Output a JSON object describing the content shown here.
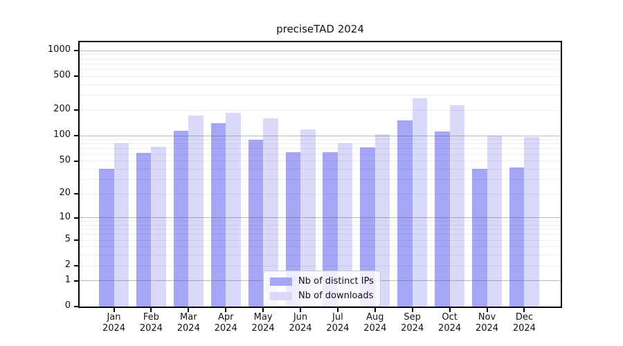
{
  "title": "preciseTAD 2024",
  "chart_data": {
    "type": "bar",
    "title": "preciseTAD 2024",
    "year_label": "2024",
    "categories": [
      "Jan",
      "Feb",
      "Mar",
      "Apr",
      "May",
      "Jun",
      "Jul",
      "Aug",
      "Sep",
      "Oct",
      "Nov",
      "Dec"
    ],
    "series": [
      {
        "name": "Nb of distinct IPs",
        "color": "#a6a6f7",
        "values": [
          40,
          62,
          115,
          140,
          90,
          64,
          63,
          73,
          151,
          112,
          40,
          42
        ]
      },
      {
        "name": "Nb of downloads",
        "color": "#d9d9fa",
        "values": [
          82,
          74,
          172,
          186,
          160,
          119,
          82,
          104,
          277,
          228,
          100,
          96
        ]
      }
    ],
    "yticks": [
      0,
      1,
      2,
      5,
      10,
      20,
      50,
      100,
      200,
      500,
      1000
    ],
    "yscale": "log1p",
    "ylim": [
      0,
      1250
    ],
    "grid": "on",
    "gridline_major_values": [
      1,
      10,
      100,
      1000
    ],
    "legend_position": "lower center",
    "xlabel": "",
    "ylabel": ""
  }
}
